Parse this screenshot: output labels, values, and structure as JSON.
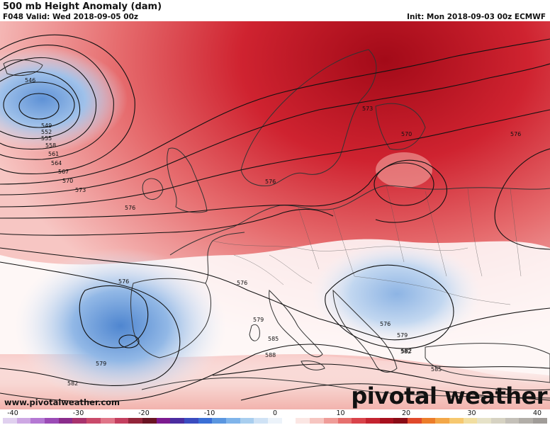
{
  "header": {
    "title": "500 mb Height Anomaly (dam)",
    "valid": "F048 Valid: Wed 2018-09-05 00z",
    "init": "Init: Mon 2018-09-03 00z ECMWF"
  },
  "map": {
    "field": "500 mb height anomaly",
    "contour_labels": [
      "546",
      "549",
      "552",
      "555",
      "558",
      "561",
      "564",
      "567",
      "570",
      "573",
      "576",
      "579",
      "582",
      "585",
      "588"
    ],
    "labels": [
      {
        "text": "546"
      },
      {
        "text": "549"
      },
      {
        "text": "552"
      },
      {
        "text": "555"
      },
      {
        "text": "558"
      },
      {
        "text": "561"
      },
      {
        "text": "564"
      },
      {
        "text": "567"
      },
      {
        "text": "570"
      },
      {
        "text": "573"
      },
      {
        "text": "576"
      },
      {
        "text": "576"
      },
      {
        "text": "576"
      },
      {
        "text": "573"
      },
      {
        "text": "570"
      },
      {
        "text": "576"
      },
      {
        "text": "579"
      },
      {
        "text": "582"
      },
      {
        "text": "585"
      },
      {
        "text": "588"
      },
      {
        "text": "576"
      },
      {
        "text": "579"
      },
      {
        "text": "582"
      },
      {
        "text": "585"
      },
      {
        "text": "576"
      },
      {
        "text": "579"
      },
      {
        "text": "582"
      }
    ],
    "colors": {
      "strong_positive": "#b80d1c",
      "positive": "#e04a50",
      "weak_positive": "#f4b7b4",
      "neutral": "#ffffff",
      "weak_negative": "#b8d3ef",
      "negative": "#6e9fdb",
      "contour": "#111111",
      "coastline": "#333333"
    }
  },
  "watermark": {
    "url": "www.pivotalweather.com",
    "brand": "pivotal weather"
  },
  "colorbar": {
    "ticks": [
      "-40",
      "-30",
      "-20",
      "-10",
      "0",
      "10",
      "20",
      "30",
      "40"
    ],
    "colors": [
      "#e0d0ef",
      "#cda7e3",
      "#b478d3",
      "#9b4bb6",
      "#8a2c8c",
      "#a8336d",
      "#c94a6a",
      "#e07588",
      "#c43f5f",
      "#93253a",
      "#6a1423",
      "#7c1a8f",
      "#4b2ca0",
      "#3a4cc0",
      "#3a6fd6",
      "#5a96e0",
      "#7fb4ea",
      "#a8ceef",
      "#cfe2f5",
      "#ecf3fa",
      "#ffffff",
      "#fbe6e3",
      "#f6c5c0",
      "#ef9c98",
      "#e6706e",
      "#d9434a",
      "#c42430",
      "#a7101e",
      "#8a0c16",
      "#e0492b",
      "#ec7d2a",
      "#f3a748",
      "#f6c86f",
      "#f1dea0",
      "#e6e2c8",
      "#d6d2c2",
      "#c4c0b8",
      "#b2aea8",
      "#a09c98"
    ]
  }
}
